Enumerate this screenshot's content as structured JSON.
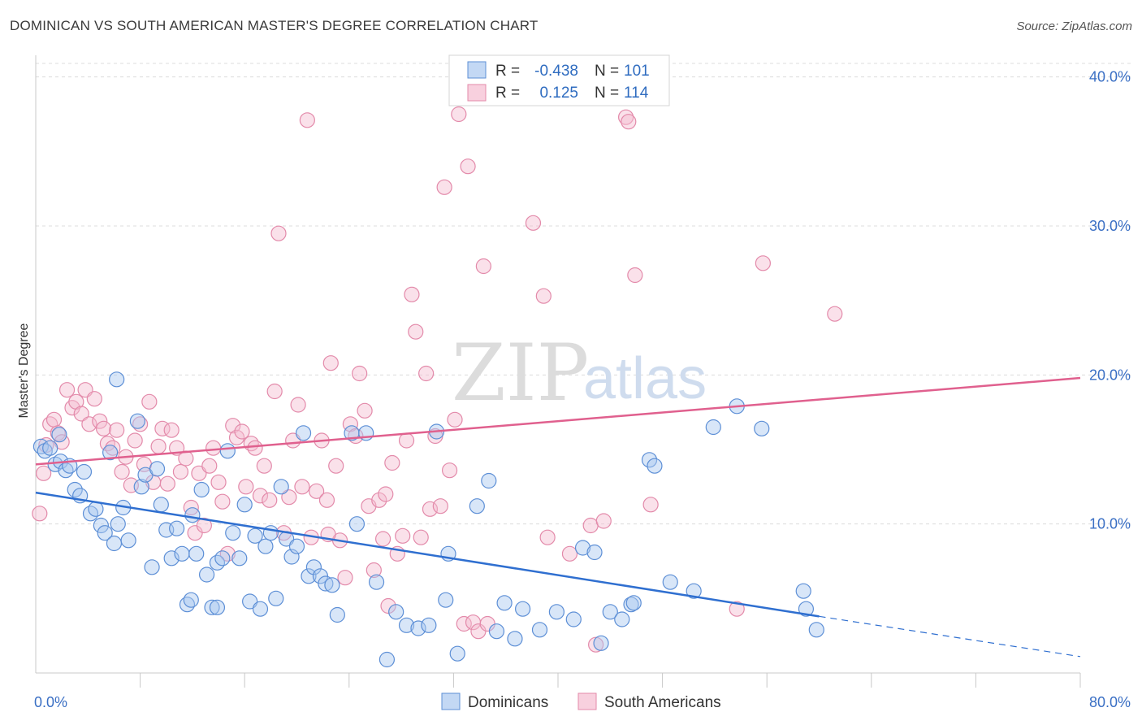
{
  "title": "DOMINICAN VS SOUTH AMERICAN MASTER'S DEGREE CORRELATION CHART",
  "source": "Source: ZipAtlas.com",
  "watermark": {
    "zip": "ZIP",
    "atlas": "atlas"
  },
  "colors": {
    "dominicans_fill": "#a9c7ef",
    "dominicans_stroke": "#5d8fd6",
    "dominicans_line": "#2f6fd0",
    "south_fill": "#f5bcd0",
    "south_stroke": "#e38aaa",
    "south_line": "#e0608e",
    "grid": "#dcdcdc",
    "tick_text": "#3a6fc4"
  },
  "legend": {
    "rows": [
      {
        "r_label": "R =",
        "r_value": "-0.438",
        "n_label": "N =",
        "n_value": "101"
      },
      {
        "r_label": "R =",
        "r_value": "0.125",
        "n_label": "N =",
        "n_value": "114"
      }
    ]
  },
  "bottom_legend": [
    "Dominicans",
    "South Americans"
  ],
  "chart_data": {
    "type": "scatter",
    "title": "DOMINICAN VS SOUTH AMERICAN MASTER'S DEGREE CORRELATION CHART",
    "xlabel": "",
    "ylabel": "Master's Degree",
    "xlim": [
      0,
      80
    ],
    "ylim": [
      0,
      42
    ],
    "x_tick_labels": [
      "0.0%",
      "80.0%"
    ],
    "y_ticks": [
      10,
      20,
      30,
      40
    ],
    "y_tick_labels": [
      "10.0%",
      "20.0%",
      "30.0%",
      "40.0%"
    ],
    "grid": true,
    "legend_placement": "top-center",
    "series": [
      {
        "name": "Dominicans",
        "r": -0.438,
        "n": 101,
        "trend": {
          "x0": 0,
          "y0": 12.1,
          "x1": 60,
          "y1": 3.8,
          "dashed_to_x": 80,
          "dashed_to_y": 1.1
        },
        "points": [
          [
            0.4,
            15.2
          ],
          [
            0.7,
            14.9
          ],
          [
            1.1,
            15.1
          ],
          [
            1.5,
            14.0
          ],
          [
            1.9,
            14.2
          ],
          [
            2.3,
            13.6
          ],
          [
            2.6,
            13.9
          ],
          [
            1.8,
            16.0
          ],
          [
            3.0,
            12.3
          ],
          [
            3.4,
            11.9
          ],
          [
            3.7,
            13.5
          ],
          [
            4.2,
            10.7
          ],
          [
            4.6,
            11.0
          ],
          [
            5.0,
            9.9
          ],
          [
            5.3,
            9.4
          ],
          [
            5.7,
            14.8
          ],
          [
            6.0,
            8.7
          ],
          [
            6.3,
            10.0
          ],
          [
            6.7,
            11.1
          ],
          [
            7.1,
            8.9
          ],
          [
            6.2,
            19.7
          ],
          [
            7.8,
            16.9
          ],
          [
            8.1,
            12.5
          ],
          [
            8.4,
            13.3
          ],
          [
            8.9,
            7.1
          ],
          [
            9.3,
            13.7
          ],
          [
            9.6,
            11.3
          ],
          [
            10.0,
            9.6
          ],
          [
            10.4,
            7.7
          ],
          [
            10.8,
            9.7
          ],
          [
            11.2,
            8.0
          ],
          [
            11.6,
            4.6
          ],
          [
            12.0,
            10.6
          ],
          [
            12.3,
            8.0
          ],
          [
            12.7,
            12.3
          ],
          [
            13.1,
            6.6
          ],
          [
            13.5,
            4.4
          ],
          [
            13.9,
            7.4
          ],
          [
            14.3,
            7.7
          ],
          [
            14.7,
            14.9
          ],
          [
            15.1,
            9.4
          ],
          [
            15.6,
            7.7
          ],
          [
            16.0,
            11.3
          ],
          [
            16.4,
            4.8
          ],
          [
            16.8,
            9.2
          ],
          [
            17.2,
            4.3
          ],
          [
            17.6,
            8.5
          ],
          [
            18.0,
            9.4
          ],
          [
            18.4,
            5.0
          ],
          [
            18.8,
            12.5
          ],
          [
            19.2,
            9.0
          ],
          [
            19.6,
            7.8
          ],
          [
            20.0,
            8.5
          ],
          [
            20.5,
            16.1
          ],
          [
            20.9,
            6.5
          ],
          [
            21.3,
            7.1
          ],
          [
            21.8,
            6.5
          ],
          [
            22.2,
            6.0
          ],
          [
            22.7,
            5.9
          ],
          [
            23.1,
            3.9
          ],
          [
            24.2,
            16.1
          ],
          [
            24.6,
            10.0
          ],
          [
            25.3,
            16.1
          ],
          [
            26.1,
            6.1
          ],
          [
            26.9,
            0.9
          ],
          [
            27.6,
            4.1
          ],
          [
            28.4,
            3.2
          ],
          [
            29.3,
            3.0
          ],
          [
            30.1,
            3.2
          ],
          [
            30.7,
            16.2
          ],
          [
            31.4,
            4.9
          ],
          [
            31.6,
            8.0
          ],
          [
            32.3,
            1.3
          ],
          [
            33.8,
            11.2
          ],
          [
            34.7,
            12.9
          ],
          [
            35.3,
            2.8
          ],
          [
            35.9,
            4.7
          ],
          [
            36.7,
            2.3
          ],
          [
            37.3,
            4.3
          ],
          [
            38.6,
            2.9
          ],
          [
            39.9,
            4.1
          ],
          [
            41.2,
            3.6
          ],
          [
            41.9,
            8.4
          ],
          [
            42.8,
            8.1
          ],
          [
            44.0,
            4.1
          ],
          [
            44.9,
            3.6
          ],
          [
            45.6,
            4.6
          ],
          [
            45.8,
            4.7
          ],
          [
            47.0,
            14.3
          ],
          [
            47.4,
            13.9
          ],
          [
            48.6,
            6.1
          ],
          [
            50.4,
            5.5
          ],
          [
            51.9,
            16.5
          ],
          [
            53.7,
            17.9
          ],
          [
            55.6,
            16.4
          ],
          [
            58.8,
            5.5
          ],
          [
            59.0,
            4.3
          ],
          [
            59.8,
            2.9
          ],
          [
            43.3,
            2.0
          ],
          [
            11.9,
            4.9
          ],
          [
            13.9,
            4.4
          ]
        ]
      },
      {
        "name": "South Americans",
        "r": 0.125,
        "n": 114,
        "trend": {
          "x0": 0,
          "y0": 14.0,
          "x1": 80,
          "y1": 19.8
        },
        "points": [
          [
            0.3,
            10.7
          ],
          [
            0.6,
            13.4
          ],
          [
            0.8,
            15.3
          ],
          [
            1.1,
            16.7
          ],
          [
            1.4,
            17.0
          ],
          [
            1.7,
            16.1
          ],
          [
            2.0,
            15.5
          ],
          [
            2.4,
            19.0
          ],
          [
            2.8,
            17.8
          ],
          [
            3.1,
            18.2
          ],
          [
            3.5,
            17.4
          ],
          [
            3.8,
            19.0
          ],
          [
            4.1,
            16.7
          ],
          [
            4.5,
            18.4
          ],
          [
            4.9,
            16.9
          ],
          [
            5.2,
            16.4
          ],
          [
            5.5,
            15.4
          ],
          [
            5.9,
            15.1
          ],
          [
            6.2,
            16.3
          ],
          [
            6.6,
            13.5
          ],
          [
            6.9,
            14.5
          ],
          [
            7.3,
            12.6
          ],
          [
            7.6,
            15.6
          ],
          [
            8.0,
            16.7
          ],
          [
            8.3,
            14.0
          ],
          [
            8.7,
            18.2
          ],
          [
            9.0,
            12.8
          ],
          [
            9.4,
            15.2
          ],
          [
            9.7,
            16.4
          ],
          [
            10.1,
            12.7
          ],
          [
            10.4,
            16.3
          ],
          [
            10.8,
            15.1
          ],
          [
            11.1,
            13.5
          ],
          [
            11.5,
            14.4
          ],
          [
            11.9,
            11.1
          ],
          [
            12.2,
            9.4
          ],
          [
            12.5,
            13.4
          ],
          [
            12.9,
            9.9
          ],
          [
            13.3,
            13.9
          ],
          [
            13.6,
            15.1
          ],
          [
            14.0,
            12.8
          ],
          [
            14.3,
            11.5
          ],
          [
            14.7,
            8.0
          ],
          [
            15.1,
            16.6
          ],
          [
            15.4,
            15.8
          ],
          [
            15.8,
            16.2
          ],
          [
            16.1,
            12.5
          ],
          [
            16.5,
            15.4
          ],
          [
            16.8,
            15.1
          ],
          [
            17.2,
            11.9
          ],
          [
            17.5,
            13.9
          ],
          [
            17.9,
            11.6
          ],
          [
            18.3,
            18.9
          ],
          [
            18.6,
            29.5
          ],
          [
            19.0,
            9.4
          ],
          [
            19.4,
            11.8
          ],
          [
            19.7,
            15.6
          ],
          [
            20.1,
            18.0
          ],
          [
            20.4,
            12.5
          ],
          [
            20.8,
            37.1
          ],
          [
            21.1,
            9.1
          ],
          [
            21.5,
            12.2
          ],
          [
            21.9,
            15.6
          ],
          [
            22.3,
            11.6
          ],
          [
            22.6,
            20.8
          ],
          [
            23.0,
            13.9
          ],
          [
            23.3,
            8.9
          ],
          [
            23.7,
            6.4
          ],
          [
            24.1,
            16.7
          ],
          [
            24.5,
            15.9
          ],
          [
            24.8,
            20.1
          ],
          [
            25.2,
            17.6
          ],
          [
            25.5,
            11.2
          ],
          [
            25.9,
            6.9
          ],
          [
            26.3,
            11.6
          ],
          [
            26.6,
            9.0
          ],
          [
            27.0,
            4.5
          ],
          [
            27.3,
            14.1
          ],
          [
            27.7,
            8.0
          ],
          [
            28.1,
            9.2
          ],
          [
            28.4,
            15.6
          ],
          [
            28.8,
            25.4
          ],
          [
            29.1,
            22.9
          ],
          [
            29.5,
            9.1
          ],
          [
            29.9,
            20.1
          ],
          [
            30.2,
            11.0
          ],
          [
            30.6,
            15.9
          ],
          [
            31.0,
            11.2
          ],
          [
            31.3,
            32.6
          ],
          [
            31.7,
            13.6
          ],
          [
            32.1,
            17.0
          ],
          [
            32.4,
            37.5
          ],
          [
            32.8,
            3.3
          ],
          [
            33.1,
            34.0
          ],
          [
            33.5,
            3.4
          ],
          [
            33.9,
            2.8
          ],
          [
            34.3,
            27.3
          ],
          [
            34.6,
            3.3
          ],
          [
            38.1,
            30.2
          ],
          [
            38.9,
            25.3
          ],
          [
            39.2,
            9.1
          ],
          [
            40.9,
            8.0
          ],
          [
            42.5,
            9.9
          ],
          [
            42.9,
            1.9
          ],
          [
            43.5,
            10.2
          ],
          [
            45.2,
            37.3
          ],
          [
            45.4,
            37.0
          ],
          [
            45.9,
            26.7
          ],
          [
            47.1,
            11.3
          ],
          [
            53.7,
            4.3
          ],
          [
            55.7,
            27.5
          ],
          [
            61.2,
            24.1
          ],
          [
            26.8,
            12.0
          ],
          [
            22.4,
            9.3
          ]
        ]
      }
    ]
  }
}
